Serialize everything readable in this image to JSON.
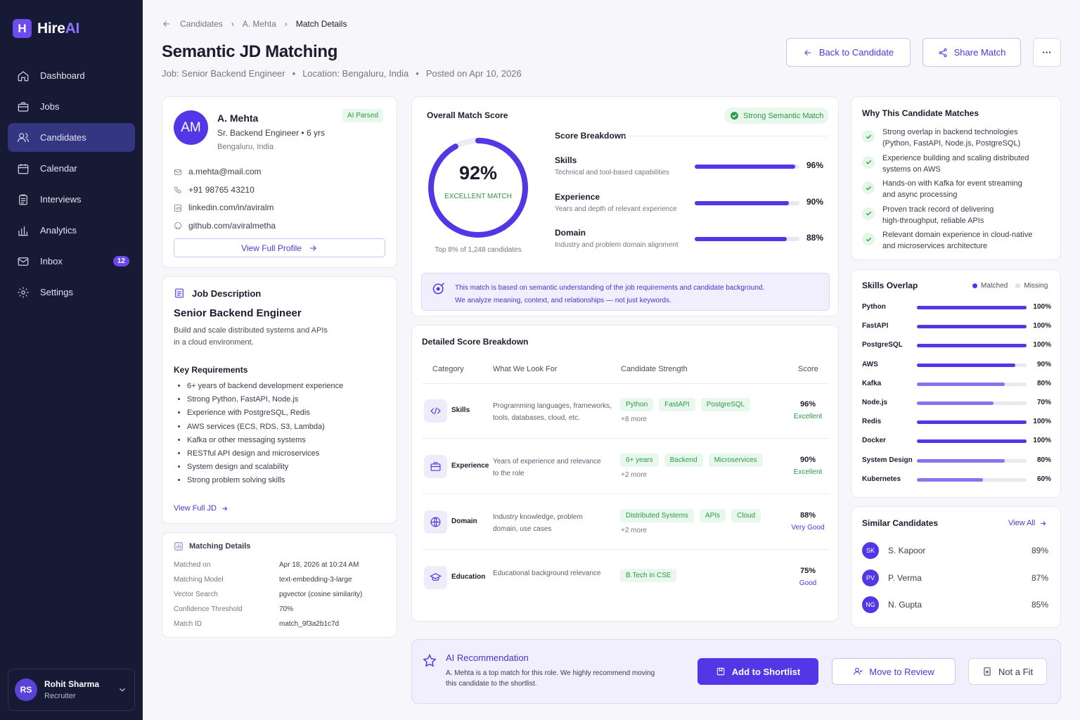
{
  "app": {
    "brand_a": "Hire",
    "brand_b": "AI",
    "brand_icon": "H"
  },
  "nav": [
    {
      "label": "Dashboard",
      "icon": "home-icon"
    },
    {
      "label": "Jobs",
      "icon": "briefcase-icon"
    },
    {
      "label": "Candidates",
      "icon": "users-icon",
      "active": true
    },
    {
      "label": "Calendar",
      "icon": "calendar-icon"
    },
    {
      "label": "Interviews",
      "icon": "clipboard-icon"
    },
    {
      "label": "Analytics",
      "icon": "bar-chart-icon"
    },
    {
      "label": "Inbox",
      "icon": "mail-icon",
      "badge": "12"
    },
    {
      "label": "Settings",
      "icon": "gear-icon"
    }
  ],
  "user": {
    "initials": "RS",
    "name": "Rohit Sharma",
    "role": "Recruiter"
  },
  "breadcrumb": [
    "Candidates",
    "A. Mehta",
    "Match Details"
  ],
  "page": {
    "title": "Semantic JD Matching",
    "job": "Job: Senior Backend Engineer",
    "location": "Location: Bengaluru, India",
    "posted": "Posted on Apr 10, 2026",
    "back_btn": "Back to Candidate",
    "share_btn": "Share Match",
    "more": "···"
  },
  "candidate": {
    "initials": "AM",
    "name": "A. Mehta",
    "badge": "AI Parsed",
    "title": "Sr. Backend Engineer • 6 yrs",
    "location": "Bengaluru, India",
    "email": "a.mehta@mail.com",
    "phone": "+91 98765 43210",
    "linkedin": "linkedin.com/in/aviralm",
    "github": "github.com/aviralmetha",
    "view_profile": "View Full Profile"
  },
  "jd": {
    "heading": "Job Description",
    "title": "Senior Backend Engineer",
    "desc_1": "Build and scale distributed systems and APIs",
    "desc_2": "in a cloud environment.",
    "req_heading": "Key Requirements",
    "requirements": [
      "6+ years of backend development experience",
      "Strong Python, FastAPI, Node.js",
      "Experience with PostgreSQL, Redis",
      "AWS services (ECS, RDS, S3, Lambda)",
      "Kafka or other messaging systems",
      "RESTful API design and microservices",
      "System design and scalability",
      "Strong problem solving skills"
    ],
    "view_full": "View Full JD"
  },
  "matching": {
    "heading": "Matching Details",
    "rows": [
      [
        "Matched on",
        "Apr 18, 2026 at 10:24 AM"
      ],
      [
        "Matching Model",
        "text-embedding-3-large"
      ],
      [
        "Vector Search",
        "pgvector (cosine similarity)"
      ],
      [
        "Confidence Threshold",
        "70%"
      ],
      [
        "Match ID",
        "match_9f3a2b1c7d"
      ]
    ]
  },
  "overall": {
    "heading": "Overall Match Score",
    "badge": "Strong Semantic Match",
    "score": "92%",
    "score_value": 92,
    "label": "EXCELLENT MATCH",
    "rank": "Top 8% of 1,248 candidates",
    "breakdown_heading": "Score Breakdown",
    "breakdown": [
      {
        "name": "Skills",
        "desc": "Technical and tool-based capabilities",
        "pct": "96%",
        "value": 96
      },
      {
        "name": "Experience",
        "desc": "Years and depth of relevant experience",
        "pct": "90%",
        "value": 90
      },
      {
        "name": "Domain",
        "desc": "Industry and problem domain alignment",
        "pct": "88%",
        "value": 88
      }
    ],
    "note_1": "This match is based on semantic understanding of the job requirements and candidate background.",
    "note_2": "We analyze meaning, context, and relationships — not just keywords."
  },
  "detailed": {
    "heading": "Detailed Score Breakdown",
    "cols": [
      "Category",
      "What We Look For",
      "Candidate Strength",
      "Score"
    ],
    "rows": [
      {
        "icon": "code-icon",
        "category": "Skills",
        "look_1": "Programming languages, frameworks,",
        "look_2": "tools, databases, cloud, etc.",
        "tags": [
          "Python",
          "FastAPI",
          "PostgreSQL"
        ],
        "more": "+8 more",
        "score": "96%",
        "rating": "Excellent"
      },
      {
        "icon": "briefcase-icon",
        "category": "Experience",
        "look_1": "Years of experience and relevance",
        "look_2": "to the role",
        "tags": [
          "6+ years",
          "Backend",
          "Microservices"
        ],
        "more": "+2 more",
        "score": "90%",
        "rating": "Excellent"
      },
      {
        "icon": "globe-icon",
        "category": "Domain",
        "look_1": "Industry knowledge, problem",
        "look_2": "domain, use cases",
        "tags": [
          "Distributed Systems",
          "APIs",
          "Cloud"
        ],
        "more": "+2 more",
        "score": "88%",
        "rating": "Very Good"
      },
      {
        "icon": "graduation-cap-icon",
        "category": "Education",
        "look_1": "Educational background relevance",
        "look_2": "",
        "tags": [
          "B.Tech in CSE"
        ],
        "more": "",
        "score": "75%",
        "rating": "Good"
      }
    ]
  },
  "why": {
    "heading": "Why This Candidate Matches",
    "items": [
      [
        "Strong overlap in backend technologies",
        "(Python, FastAPI, Node.js, PostgreSQL)"
      ],
      [
        "Experience building and scaling distributed",
        "systems on AWS"
      ],
      [
        "Hands-on with Kafka for event streaming",
        "and async processing"
      ],
      [
        "Proven track record of delivering",
        "high-throughput, reliable APIs"
      ],
      [
        "Relevant domain experience in cloud-native",
        "and microservices architecture"
      ]
    ]
  },
  "skills": {
    "heading": "Skills Overlap",
    "legend_matched": "Matched",
    "legend_missing": "Missing",
    "items": [
      {
        "name": "Python",
        "pct": "100%",
        "value": 100
      },
      {
        "name": "FastAPI",
        "pct": "100%",
        "value": 100
      },
      {
        "name": "PostgreSQL",
        "pct": "100%",
        "value": 100
      },
      {
        "name": "AWS",
        "pct": "90%",
        "value": 90
      },
      {
        "name": "Kafka",
        "pct": "80%",
        "value": 80
      },
      {
        "name": "Node.js",
        "pct": "70%",
        "value": 70
      },
      {
        "name": "Redis",
        "pct": "100%",
        "value": 100
      },
      {
        "name": "Docker",
        "pct": "100%",
        "value": 100
      },
      {
        "name": "System Design",
        "pct": "80%",
        "value": 80
      },
      {
        "name": "Kubernetes",
        "pct": "60%",
        "value": 60
      }
    ],
    "colors": {
      "matched": "#5337e6",
      "partial": "#8b73ef"
    }
  },
  "similar": {
    "heading": "Similar Candidates",
    "view_all": "View All",
    "items": [
      {
        "initials": "SK",
        "name": "S. Kapoor",
        "pct": "89%"
      },
      {
        "initials": "PV",
        "name": "P. Verma",
        "pct": "87%"
      },
      {
        "initials": "NG",
        "name": "N. Gupta",
        "pct": "85%"
      }
    ]
  },
  "reco": {
    "heading": "AI Recommendation",
    "text_1": "A. Mehta is a top match for this role. We highly recommend moving",
    "text_2": "this candidate to the shortlist.",
    "shortlist": "Add to Shortlist",
    "review": "Move to Review",
    "notfit": "Not a Fit"
  },
  "colors": {
    "accent": "#5337e6",
    "sidebar": "#171a35",
    "success": "#2c9a44"
  }
}
